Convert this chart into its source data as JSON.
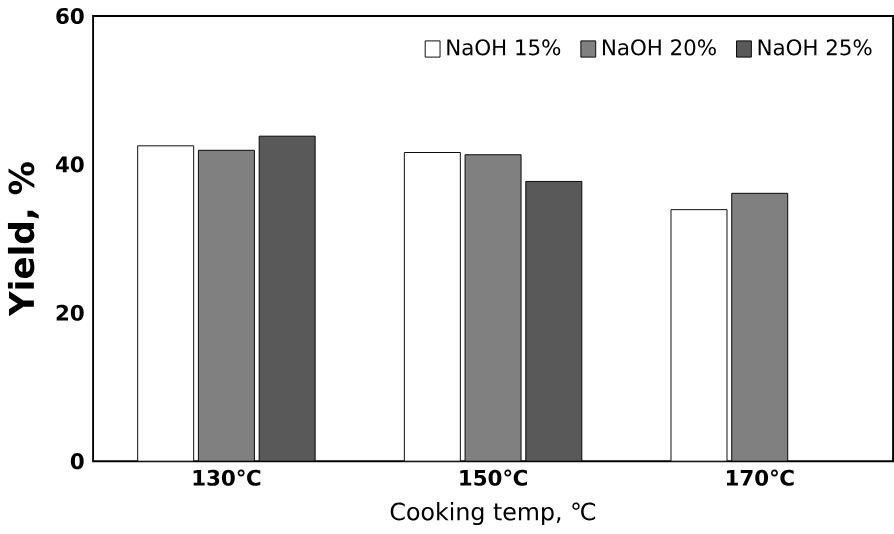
{
  "chart_data": {
    "type": "bar",
    "xlabel": "Cooking temp, ℃",
    "ylabel": "Yield, %",
    "categories": [
      "130℃",
      "150℃",
      "170℃"
    ],
    "series": [
      {
        "name": "NaOH 15%",
        "color": "#ffffff",
        "values": [
          42.5,
          41.6,
          33.9
        ]
      },
      {
        "name": "NaOH 20%",
        "color": "#808080",
        "values": [
          41.9,
          41.3,
          36.1
        ]
      },
      {
        "name": "NaOH 25%",
        "color": "#595959",
        "values": [
          43.8,
          37.7,
          null
        ]
      }
    ],
    "ylim": [
      0,
      60
    ],
    "yticks": [
      0,
      20,
      40,
      60
    ],
    "grid": false,
    "legend": "top right"
  }
}
